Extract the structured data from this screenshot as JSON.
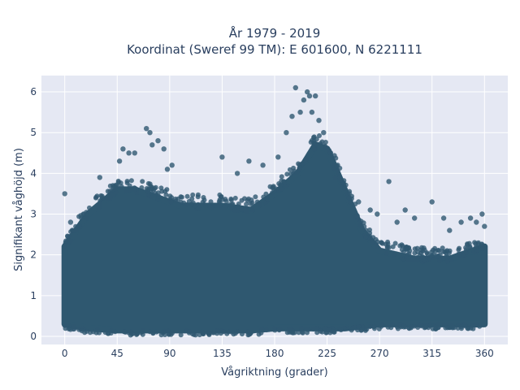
{
  "chart_data": {
    "type": "scatter",
    "title": "År 1979 - 2019",
    "subtitle": "Koordinat (Sweref 99 TM): E 601600, N 6221111",
    "xlabel": "Vågriktning (grader)",
    "ylabel": "Signifikant våghöjd (m)",
    "xlim": [
      -20,
      380
    ],
    "ylim": [
      -0.2,
      6.4
    ],
    "xticks": [
      0,
      45,
      90,
      135,
      180,
      225,
      270,
      315,
      360
    ],
    "yticks": [
      0,
      1,
      2,
      3,
      4,
      5,
      6
    ],
    "grid": true,
    "legend": "none",
    "colors": {
      "marker": "#2f5870",
      "plot_bg": "#e5e8f3",
      "grid": "#ffffff",
      "text": "#2a3f5f"
    },
    "envelope": {
      "direction": [
        0,
        20,
        45,
        60,
        80,
        100,
        135,
        160,
        180,
        200,
        215,
        225,
        240,
        255,
        270,
        300,
        330,
        360
      ],
      "upper_height": [
        2.2,
        3.0,
        3.6,
        3.6,
        3.4,
        3.2,
        3.2,
        3.1,
        3.5,
        4.0,
        4.7,
        4.6,
        3.6,
        2.6,
        2.1,
        1.9,
        1.9,
        2.2
      ],
      "lower_height": [
        0.3,
        0.2,
        0.15,
        0.15,
        0.15,
        0.15,
        0.15,
        0.15,
        0.2,
        0.2,
        0.2,
        0.2,
        0.2,
        0.25,
        0.3,
        0.3,
        0.3,
        0.3
      ]
    },
    "outliers": {
      "direction": [
        0,
        5,
        30,
        47,
        50,
        55,
        60,
        70,
        73,
        75,
        80,
        85,
        88,
        92,
        135,
        148,
        158,
        170,
        183,
        190,
        195,
        198,
        202,
        205,
        208,
        210,
        212,
        215,
        218,
        222,
        228,
        232,
        252,
        262,
        268,
        278,
        285,
        292,
        300,
        315,
        325,
        330,
        340,
        348,
        353,
        358,
        360
      ],
      "height": [
        3.5,
        2.8,
        3.9,
        4.3,
        4.6,
        4.5,
        4.5,
        5.1,
        5.0,
        4.7,
        4.8,
        4.6,
        4.1,
        4.2,
        4.4,
        4.0,
        4.3,
        4.2,
        4.4,
        5.0,
        5.4,
        6.1,
        5.5,
        5.8,
        6.0,
        5.9,
        5.5,
        5.9,
        5.3,
        5.0,
        4.5,
        3.9,
        3.3,
        3.1,
        3.0,
        3.8,
        2.8,
        3.1,
        2.9,
        3.3,
        2.9,
        2.6,
        2.8,
        2.9,
        2.8,
        3.0,
        2.7
      ]
    }
  }
}
